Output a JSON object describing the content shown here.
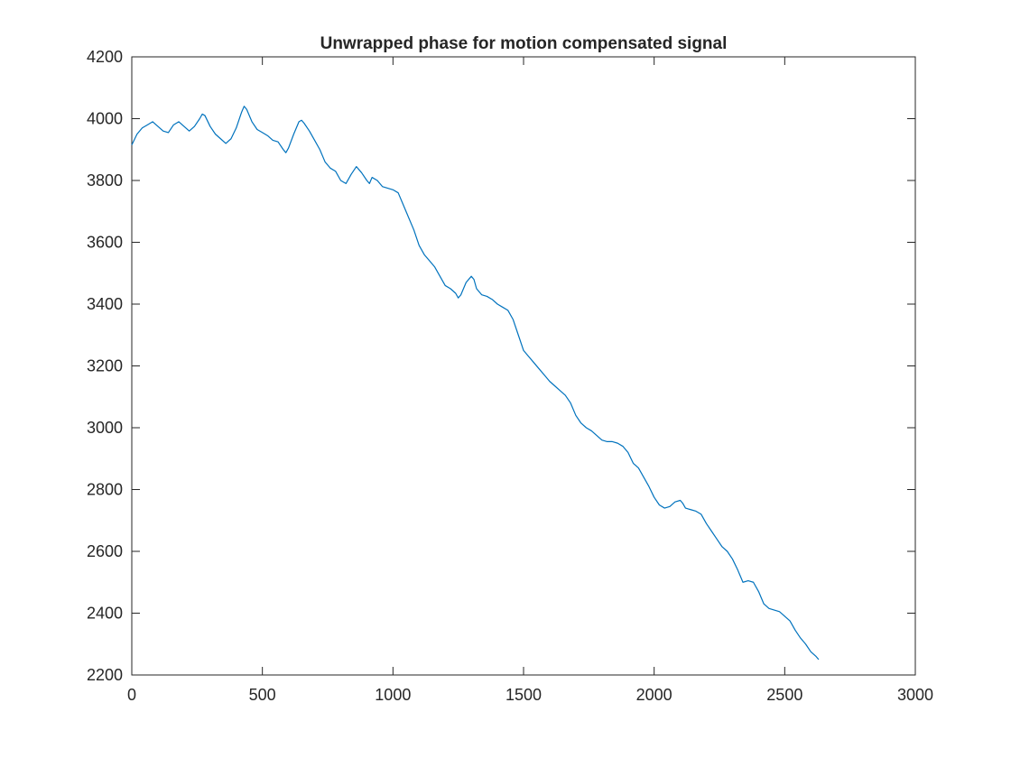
{
  "chart_data": {
    "type": "line",
    "title": "Unwrapped phase for motion compensated signal",
    "xlabel": "",
    "ylabel": "",
    "xlim": [
      0,
      3000
    ],
    "ylim": [
      2200,
      4200
    ],
    "xticks": [
      0,
      500,
      1000,
      1500,
      2000,
      2500,
      3000
    ],
    "yticks": [
      2200,
      2400,
      2600,
      2800,
      3000,
      3200,
      3400,
      3600,
      3800,
      4000,
      4200
    ],
    "xtick_labels": [
      "0",
      "500",
      "1000",
      "1500",
      "2000",
      "2500",
      "3000"
    ],
    "ytick_labels": [
      "2200",
      "2400",
      "2600",
      "2800",
      "3000",
      "3200",
      "3400",
      "3600",
      "3800",
      "4000",
      "4200"
    ],
    "grid": false,
    "legend": "none",
    "colors": {
      "line": "#0072BD",
      "axes": "#262626",
      "title": "#000000"
    },
    "series": [
      {
        "x": [
          0,
          20,
          40,
          60,
          80,
          100,
          120,
          140,
          160,
          180,
          200,
          220,
          240,
          260,
          270,
          280,
          300,
          320,
          340,
          360,
          380,
          400,
          420,
          430,
          440,
          460,
          480,
          500,
          520,
          540,
          560,
          580,
          590,
          600,
          620,
          640,
          650,
          660,
          680,
          700,
          720,
          740,
          760,
          780,
          800,
          820,
          840,
          860,
          880,
          900,
          910,
          920,
          940,
          960,
          980,
          1000,
          1020,
          1040,
          1060,
          1080,
          1100,
          1120,
          1140,
          1160,
          1180,
          1200,
          1220,
          1240,
          1250,
          1260,
          1280,
          1300,
          1310,
          1320,
          1340,
          1360,
          1380,
          1400,
          1420,
          1440,
          1460,
          1480,
          1500,
          1520,
          1540,
          1560,
          1580,
          1600,
          1620,
          1640,
          1660,
          1680,
          1700,
          1720,
          1740,
          1760,
          1780,
          1800,
          1820,
          1840,
          1860,
          1880,
          1900,
          1920,
          1940,
          1960,
          1980,
          2000,
          2020,
          2040,
          2060,
          2080,
          2100,
          2110,
          2120,
          2140,
          2160,
          2180,
          2200,
          2220,
          2240,
          2260,
          2280,
          2300,
          2320,
          2340,
          2360,
          2380,
          2400,
          2420,
          2440,
          2460,
          2480,
          2500,
          2520,
          2540,
          2560,
          2580,
          2600,
          2620,
          2630
        ],
        "values": [
          3915,
          3950,
          3970,
          3980,
          3990,
          3975,
          3960,
          3955,
          3980,
          3990,
          3975,
          3960,
          3975,
          4000,
          4015,
          4010,
          3975,
          3950,
          3935,
          3920,
          3935,
          3970,
          4020,
          4040,
          4030,
          3990,
          3965,
          3955,
          3945,
          3930,
          3925,
          3900,
          3890,
          3905,
          3950,
          3990,
          3995,
          3985,
          3960,
          3930,
          3900,
          3860,
          3840,
          3830,
          3800,
          3790,
          3820,
          3845,
          3825,
          3800,
          3790,
          3810,
          3800,
          3780,
          3775,
          3770,
          3760,
          3720,
          3680,
          3640,
          3590,
          3560,
          3540,
          3520,
          3490,
          3460,
          3450,
          3435,
          3420,
          3430,
          3470,
          3490,
          3480,
          3450,
          3430,
          3425,
          3415,
          3400,
          3390,
          3380,
          3350,
          3300,
          3250,
          3230,
          3210,
          3190,
          3170,
          3150,
          3135,
          3120,
          3105,
          3080,
          3040,
          3015,
          3000,
          2990,
          2975,
          2960,
          2955,
          2955,
          2950,
          2940,
          2920,
          2885,
          2870,
          2840,
          2810,
          2775,
          2750,
          2740,
          2745,
          2760,
          2765,
          2755,
          2740,
          2735,
          2730,
          2720,
          2690,
          2665,
          2640,
          2615,
          2600,
          2575,
          2540,
          2500,
          2505,
          2500,
          2470,
          2430,
          2415,
          2410,
          2405,
          2390,
          2375,
          2345,
          2320,
          2300,
          2275,
          2260,
          2250
        ]
      }
    ]
  }
}
